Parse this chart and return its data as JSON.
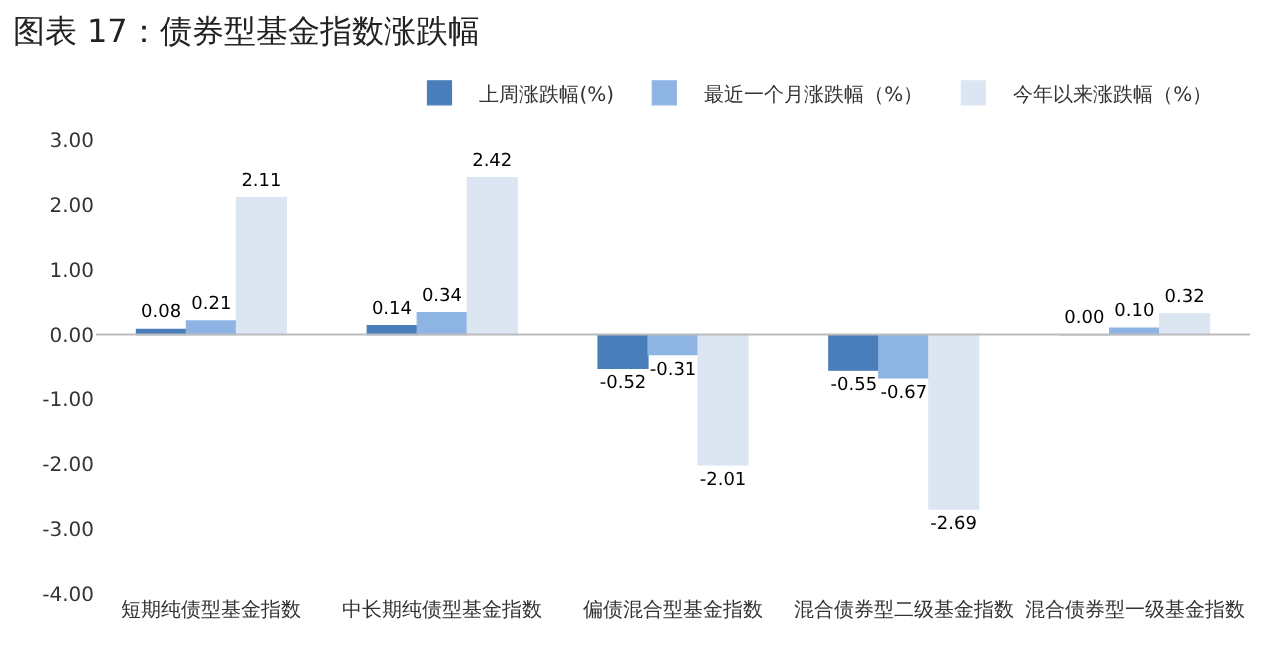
{
  "chart_data": {
    "type": "bar",
    "title": "图表 17：债券型基金指数涨跌幅",
    "categories": [
      "短期纯债型基金指数",
      "中长期纯债型基金指数",
      "偏债混合型基金指数",
      "混合债券型二级基金指数",
      "混合债券型一级基金指数"
    ],
    "series": [
      {
        "name": "上周涨跌幅(%)",
        "color": "#4a7ebb",
        "values": [
          0.08,
          0.14,
          -0.52,
          -0.55,
          0.0
        ],
        "value_labels": [
          "0.08",
          "0.14",
          "-0.52",
          "-0.55",
          "0.00"
        ]
      },
      {
        "name": "最近一个月涨跌幅（%）",
        "color": "#8eb4e3",
        "values": [
          0.21,
          0.34,
          -0.31,
          -0.67,
          0.1
        ],
        "value_labels": [
          "0.21",
          "0.34",
          "-0.31",
          "-0.67",
          "0.10"
        ]
      },
      {
        "name": "今年以来涨跌幅（%）",
        "color": "#dce6f2",
        "values": [
          2.11,
          2.42,
          -2.01,
          -2.69,
          0.32
        ],
        "value_labels": [
          "2.11",
          "2.42",
          "-2.01",
          "-2.69",
          "0.32"
        ]
      }
    ],
    "ylim": [
      -4,
      3
    ],
    "yticks": [
      {
        "value": -4,
        "label": "-4.00"
      },
      {
        "value": -3,
        "label": "-3.00"
      },
      {
        "value": -2,
        "label": "-2.00"
      },
      {
        "value": -1,
        "label": "-1.00"
      },
      {
        "value": 0,
        "label": "0.00"
      },
      {
        "value": 1,
        "label": "1.00"
      },
      {
        "value": 2,
        "label": "2.00"
      },
      {
        "value": 3,
        "label": "3.00"
      }
    ],
    "ref_lines": [
      {
        "axis": "y",
        "value": 0,
        "color": "#bbbbbb"
      }
    ],
    "legend": "top"
  }
}
